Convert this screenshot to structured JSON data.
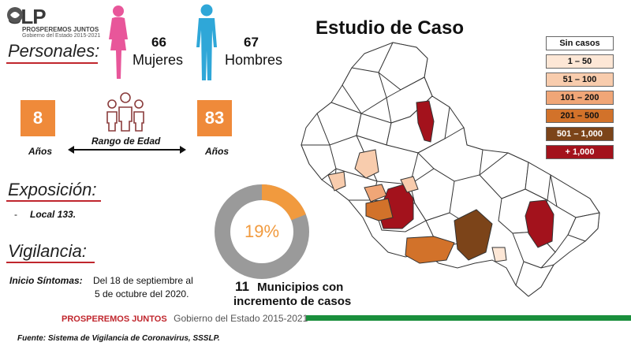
{
  "logo": {
    "brand": "SLP",
    "line1": "PROSPEREMOS JUNTOS",
    "line2": "Gobierno del Estado 2015-2021"
  },
  "title": "Estudio de Caso",
  "personales": {
    "label": "Personales:",
    "women_count": "66",
    "women_label": "Mujeres",
    "men_count": "67",
    "men_label": "Hombres",
    "women_color": "#e8569a",
    "men_color": "#2fa7d8"
  },
  "age": {
    "min": "8",
    "max": "83",
    "unit_min": "Años",
    "unit_max": "Años",
    "range_label": "Rango de Edad",
    "box_color": "#ef8a3a"
  },
  "exposicion": {
    "label": "Exposición:",
    "bullet": "-",
    "item": "Local  133."
  },
  "vigilancia": {
    "label": "Vigilancia:",
    "inicio_label": "Inicio Síntomas:",
    "inicio_line1": "Del 18 de septiembre al",
    "inicio_line2": "5 de octubre del 2020."
  },
  "donut": {
    "percent_text": "19%",
    "fraction": 0.19,
    "fill_color": "#f19a3e",
    "track_color": "#9a9a9a"
  },
  "municipios": {
    "number": "11",
    "line1": "Municipios con",
    "line2": "incremento de casos"
  },
  "legend": [
    {
      "label": "Sin casos",
      "color": "#ffffff",
      "text_color": "#111111"
    },
    {
      "label": "1 – 50",
      "color": "#fde7d6",
      "text_color": "#111111"
    },
    {
      "label": "51 – 100",
      "color": "#f8ccad",
      "text_color": "#111111"
    },
    {
      "label": "101 – 200",
      "color": "#f0a677",
      "text_color": "#111111"
    },
    {
      "label": "201 – 500",
      "color": "#d2722a",
      "text_color": "#111111"
    },
    {
      "label": "501 – 1,000",
      "color": "#7c4419",
      "text_color": "#ffffff"
    },
    {
      "label": "+ 1,000",
      "color": "#a3121c",
      "text_color": "#ffffff"
    }
  ],
  "footer": {
    "red_text": "PROSPEREMOS JUNTOS",
    "gray_text": "Gobierno del Estado 2015-2021",
    "green_color": "#1a8f3c"
  },
  "source": "Fuente: Sistema de Vigilancia de Coronavirus, SSSLP."
}
